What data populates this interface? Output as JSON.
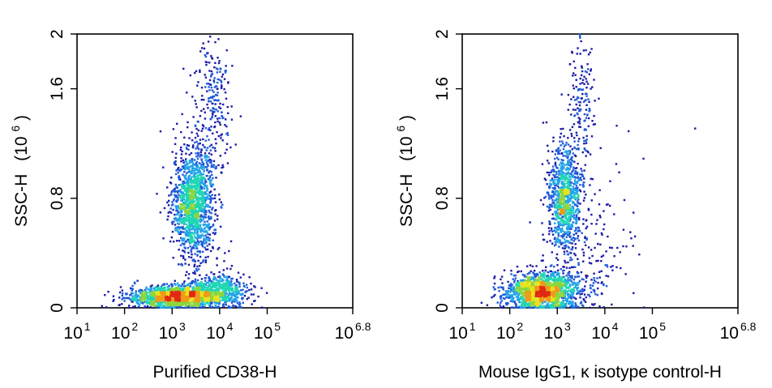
{
  "chart_data": [
    {
      "type": "scatter",
      "subtype": "flow-cytometry-density-plot",
      "title": "",
      "xlabel": "Purified CD38-H",
      "ylabel": "SSC-H",
      "ylabel_unit_base": "(10",
      "ylabel_unit_exp": "6",
      "ylabel_unit_close": ")",
      "x_scale": "log10",
      "xlim": [
        1,
        6.8
      ],
      "ylim": [
        0,
        2
      ],
      "x_ticks": [
        {
          "value": 1,
          "base": "10",
          "exp": "1"
        },
        {
          "value": 2,
          "base": "10",
          "exp": "2"
        },
        {
          "value": 3,
          "base": "10",
          "exp": "3"
        },
        {
          "value": 4,
          "base": "10",
          "exp": "4"
        },
        {
          "value": 5,
          "base": "10",
          "exp": "5"
        },
        {
          "value": 6.8,
          "base": "10",
          "exp": "6.8"
        }
      ],
      "y_ticks": [
        {
          "value": 0,
          "label": "0"
        },
        {
          "value": 0.8,
          "label": "0.8"
        },
        {
          "value": 1.6,
          "label": "1.6"
        },
        {
          "value": 2,
          "label": "2"
        }
      ],
      "populations": [
        {
          "name": "SSC-high population",
          "center_log_x": 3.45,
          "center_y": 0.76,
          "sd_log_x": 0.22,
          "sd_y": 0.2,
          "n_points": 1400
        },
        {
          "name": "low SSC population",
          "center_log_x": 3.1,
          "center_y": 0.08,
          "sd_log_x": 0.5,
          "sd_y": 0.04,
          "n_points": 1500
        },
        {
          "name": "low SSC CD38+ shoulder",
          "center_log_x": 4.0,
          "center_y": 0.13,
          "sd_log_x": 0.32,
          "sd_y": 0.06,
          "n_points": 500
        },
        {
          "name": "high SSC tail",
          "center_log_x": 3.85,
          "center_y": 1.45,
          "sd_log_x": 0.18,
          "sd_y": 0.28,
          "n_points": 260
        }
      ],
      "density_colors": [
        "#1a1aa8",
        "#1f5ad8",
        "#22a4e8",
        "#20d6b4",
        "#8cd63c",
        "#e8e21c",
        "#f09a1a",
        "#e02a14"
      ]
    },
    {
      "type": "scatter",
      "subtype": "flow-cytometry-density-plot",
      "title": "",
      "xlabel": "Mouse IgG1, κ isotype control-H",
      "ylabel": "SSC-H",
      "ylabel_unit_base": "(10",
      "ylabel_unit_exp": "6",
      "ylabel_unit_close": ")",
      "x_scale": "log10",
      "xlim": [
        1,
        6.8
      ],
      "ylim": [
        0,
        2
      ],
      "x_ticks": [
        {
          "value": 1,
          "base": "10",
          "exp": "1"
        },
        {
          "value": 2,
          "base": "10",
          "exp": "2"
        },
        {
          "value": 3,
          "base": "10",
          "exp": "3"
        },
        {
          "value": 4,
          "base": "10",
          "exp": "4"
        },
        {
          "value": 5,
          "base": "10",
          "exp": "5"
        },
        {
          "value": 6.8,
          "base": "10",
          "exp": "6.8"
        }
      ],
      "y_ticks": [
        {
          "value": 0,
          "label": "0"
        },
        {
          "value": 0.8,
          "label": "0.8"
        },
        {
          "value": 1.6,
          "label": "1.6"
        },
        {
          "value": 2,
          "label": "2"
        }
      ],
      "populations": [
        {
          "name": "SSC-high population",
          "center_log_x": 3.15,
          "center_y": 0.78,
          "sd_log_x": 0.17,
          "sd_y": 0.2,
          "n_points": 900
        },
        {
          "name": "low SSC population",
          "center_log_x": 2.7,
          "center_y": 0.12,
          "sd_log_x": 0.4,
          "sd_y": 0.07,
          "n_points": 1600
        },
        {
          "name": "high SSC tail",
          "center_log_x": 3.5,
          "center_y": 1.5,
          "sd_log_x": 0.18,
          "sd_y": 0.3,
          "n_points": 180
        },
        {
          "name": "scattered events",
          "center_log_x": 3.6,
          "center_y": 0.45,
          "sd_log_x": 0.5,
          "sd_y": 0.25,
          "n_points": 180
        }
      ],
      "outliers": [
        {
          "log_x": 4.25,
          "y": 1.33
        },
        {
          "log_x": 4.5,
          "y": 1.29
        },
        {
          "log_x": 5.9,
          "y": 1.31
        }
      ],
      "density_colors": [
        "#1a1aa8",
        "#1f5ad8",
        "#22a4e8",
        "#20d6b4",
        "#8cd63c",
        "#e8e21c",
        "#f09a1a",
        "#e02a14"
      ]
    }
  ]
}
